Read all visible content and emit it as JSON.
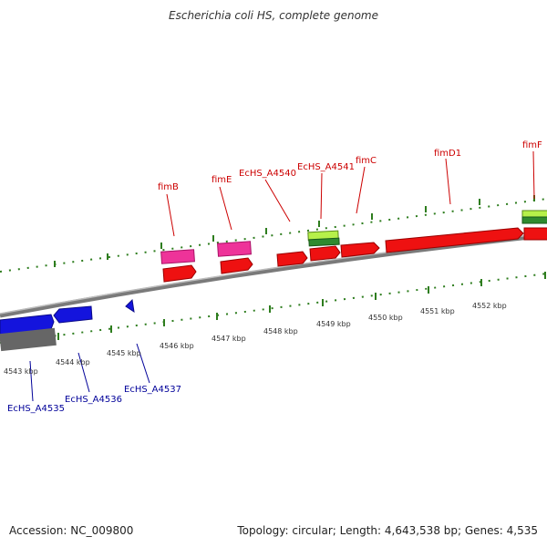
{
  "title": "Escherichia coli HS, complete genome",
  "footer": {
    "accession": "Accession: NC_009800",
    "stats": "Topology: circular; Length: 4,643,538 bp; Genes: 4,535"
  },
  "colors": {
    "forward_label": "#cc0000",
    "reverse_label": "#000099",
    "tick": "#2e7d1e",
    "backbone": "#888888"
  },
  "ticks": [
    {
      "label": "4543 kbp"
    },
    {
      "label": "4544 kbp"
    },
    {
      "label": "4545 kbp"
    },
    {
      "label": "4546 kbp"
    },
    {
      "label": "4547 kbp"
    },
    {
      "label": "4548 kbp"
    },
    {
      "label": "4549 kbp"
    },
    {
      "label": "4550 kbp"
    },
    {
      "label": "4551 kbp"
    },
    {
      "label": "4552 kbp"
    }
  ],
  "forward_labels": [
    {
      "label": "fimB"
    },
    {
      "label": "fimE"
    },
    {
      "label": "EcHS_A4540"
    },
    {
      "label": "EcHS_A4541"
    },
    {
      "label": "fimC"
    },
    {
      "label": "fimD1"
    },
    {
      "label": "fimF"
    }
  ],
  "reverse_labels": [
    {
      "label": "EcHS_A4535"
    },
    {
      "label": "EcHS_A4536"
    },
    {
      "label": "EcHS_A4537"
    }
  ]
}
